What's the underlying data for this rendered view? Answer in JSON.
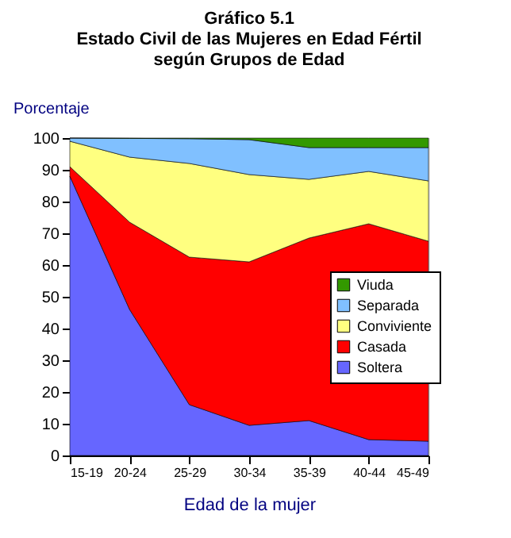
{
  "chart_data": {
    "type": "area",
    "title": [
      "Gráfico 5.1",
      "Estado Civil de las Mujeres en Edad Fértil",
      "según Grupos de Edad"
    ],
    "xlabel": "Edad de la mujer",
    "ylabel": "Porcentaje",
    "categories": [
      "15-19",
      "20-24",
      "25-29",
      "30-34",
      "35-39",
      "40-44",
      "45-49"
    ],
    "stacked": true,
    "series": [
      {
        "name": "Soltera",
        "color": "#6666ff",
        "values": [
          88,
          46,
          16,
          9.5,
          11,
          5,
          4.5
        ]
      },
      {
        "name": "Casada",
        "color": "#ff0000",
        "values": [
          3,
          27.5,
          46.5,
          51.5,
          57.5,
          68,
          63
        ]
      },
      {
        "name": "Conviviente",
        "color": "#ffff80",
        "values": [
          8,
          20.5,
          29.5,
          27.5,
          18.5,
          16.5,
          19
        ]
      },
      {
        "name": "Separada",
        "color": "#80c0ff",
        "values": [
          1,
          5.9,
          7.8,
          11,
          10,
          7.5,
          10.5
        ]
      },
      {
        "name": "Viuda",
        "color": "#339900",
        "values": [
          0,
          0.1,
          0.2,
          0.5,
          3,
          3,
          3
        ]
      }
    ],
    "ylim": [
      0,
      100
    ],
    "yticks": [
      0,
      10,
      20,
      30,
      40,
      50,
      60,
      70,
      80,
      90,
      100
    ],
    "legend": "right"
  }
}
